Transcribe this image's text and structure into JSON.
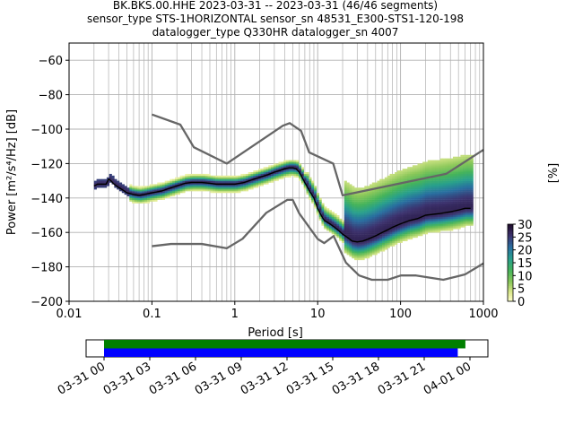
{
  "chart_data": {
    "type": "heatmap",
    "title_lines": [
      "BK.BKS.00.HHE   2023-03-31 -- 2023-03-31  (46/46 segments)",
      "sensor_type STS-1HORIZONTAL sensor_sn 48531_E300-STS1-120-198",
      "datalogger_type Q330HR datalogger_sn 4007"
    ],
    "xlabel": "Period [s]",
    "ylabel_main": "Power [m²/s⁴/Hz] [dB]",
    "x_scale": "log",
    "xlim": [
      0.01,
      1000
    ],
    "ylim": [
      -200,
      -50
    ],
    "x_ticks": [
      {
        "value": 0.01,
        "label": "0.01"
      },
      {
        "value": 0.1,
        "label": "0.1"
      },
      {
        "value": 1,
        "label": "1"
      },
      {
        "value": 10,
        "label": "10"
      },
      {
        "value": 100,
        "label": "100"
      },
      {
        "value": 1000,
        "label": "1000"
      }
    ],
    "y_ticks": [
      -60,
      -80,
      -100,
      -120,
      -140,
      -160,
      -180,
      -200
    ],
    "grid": true,
    "nhnm": {
      "name": "",
      "x": [
        0.1,
        0.22,
        0.32,
        0.8,
        3.8,
        4.6,
        6.3,
        7.9,
        15.4,
        20,
        354.8,
        1000
      ],
      "y": [
        -91.5,
        -97.4,
        -110.5,
        -120,
        -98,
        -96.5,
        -101,
        -113.5,
        -120,
        -138.5,
        -126,
        -112
      ]
    },
    "nlnm": {
      "name": "",
      "x": [
        0.1,
        0.17,
        0.4,
        0.8,
        1.24,
        2.4,
        4.3,
        5,
        6,
        10,
        12,
        15.6,
        21.9,
        31.6,
        45,
        70,
        101,
        154,
        328,
        600,
        1000
      ],
      "y": [
        -168,
        -166.7,
        -166.7,
        -169.2,
        -163.7,
        -148.6,
        -141.1,
        -141.1,
        -149,
        -163.8,
        -166.2,
        -162.1,
        -177.5,
        -185,
        -187.5,
        -187.5,
        -185,
        -185,
        -187.5,
        -184.4,
        -178
      ]
    },
    "median": {
      "name": "",
      "x": [
        0.02,
        0.022,
        0.025,
        0.028,
        0.03,
        0.032,
        0.035,
        0.04,
        0.045,
        0.05,
        0.06,
        0.07,
        0.08,
        0.1,
        0.13,
        0.16,
        0.2,
        0.25,
        0.3,
        0.4,
        0.5,
        0.6,
        0.8,
        1,
        1.3,
        1.6,
        2,
        2.5,
        3,
        3.5,
        4,
        4.5,
        5,
        5.5,
        6,
        7,
        8,
        9,
        10,
        11,
        12,
        14,
        16,
        18,
        20,
        23,
        26,
        30,
        35,
        40,
        50,
        60,
        70,
        80,
        100,
        130,
        160,
        200,
        300,
        400,
        500,
        600,
        700
      ],
      "y": [
        -133,
        -132,
        -132,
        -132,
        -129,
        -130,
        -132,
        -134,
        -135.5,
        -137,
        -138,
        -138.5,
        -138,
        -137,
        -136,
        -134.5,
        -133,
        -131.5,
        -131,
        -131,
        -131.5,
        -132,
        -132,
        -132,
        -131,
        -129.5,
        -128,
        -126.5,
        -125,
        -124,
        -123,
        -122.5,
        -122.5,
        -123,
        -125,
        -131,
        -136,
        -140,
        -146,
        -150,
        -153,
        -155,
        -157,
        -159,
        -161,
        -163,
        -165,
        -165.5,
        -165,
        -164,
        -162,
        -160,
        -158.5,
        -157,
        -155,
        -153,
        -152,
        -150,
        -149,
        -148,
        -147,
        -146,
        -146
      ]
    },
    "psd_envelope_upper": [
      -131,
      -130,
      -128,
      -126,
      -124,
      -126,
      -130,
      -137,
      -141,
      -146,
      -150,
      -150,
      -148,
      -147,
      -143,
      -140,
      -137,
      -137
    ],
    "psd_envelope_lower": [
      -135,
      -137,
      -141,
      -142,
      -142,
      -141,
      -140,
      -138,
      -140,
      -147,
      -158,
      -167,
      -172,
      -172,
      -169,
      -164,
      -160,
      -159
    ],
    "colorbar": {
      "label": "[%]",
      "ticks": [
        0,
        5,
        10,
        15,
        20,
        25,
        30
      ],
      "range": [
        0,
        30
      ],
      "colormap": "pqlx-like"
    },
    "coverage": {
      "x_ticks": [
        "03-31 00",
        "03-31 03",
        "03-31 06",
        "03-31 09",
        "03-31 12",
        "03-31 15",
        "03-31 18",
        "03-31 21",
        "04-01 00"
      ],
      "time_range_hours": [
        0,
        24
      ],
      "bars": [
        {
          "name": "",
          "color": "#007f00",
          "start_hour": 0,
          "end_hour": 23.7
        },
        {
          "name": "",
          "color": "#0000ff",
          "start_hour": 0,
          "end_hour": 23.2
        }
      ]
    }
  }
}
